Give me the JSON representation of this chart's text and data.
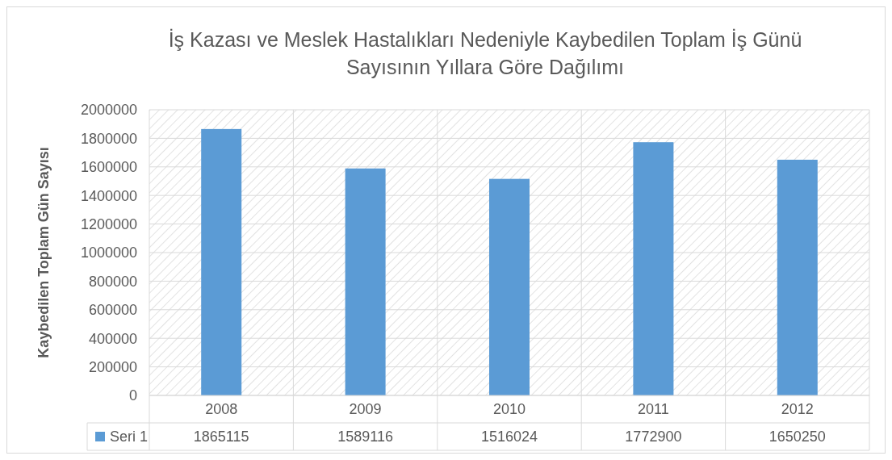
{
  "chart_data": {
    "type": "bar",
    "title": "İş Kazası ve Meslek Hastalıkları Nedeniyle Kaybedilen Toplam İş Günü Sayısının Yıllara Göre Dağılımı",
    "ylabel": "Kaybedilen Toplam Gün Sayısı",
    "categories": [
      "2008",
      "2009",
      "2010",
      "2011",
      "2012"
    ],
    "series": [
      {
        "name": "Seri 1",
        "color": "#5b9bd5",
        "values": [
          1865115,
          1589116,
          1516024,
          1772900,
          1650250
        ]
      }
    ],
    "ylim": [
      0,
      2000000
    ],
    "yticks": [
      0,
      200000,
      400000,
      600000,
      800000,
      1000000,
      1200000,
      1400000,
      1600000,
      1800000,
      2000000
    ],
    "grid": true,
    "data_labels": true,
    "legend": "bottom"
  }
}
